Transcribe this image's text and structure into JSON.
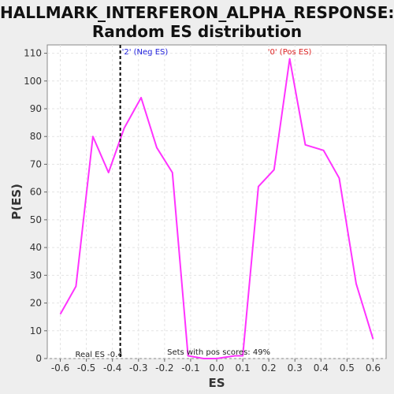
{
  "chart_data": {
    "type": "line",
    "title_line1": "HALLMARK_INTERFERON_ALPHA_RESPONSE:",
    "title_line2": "Random ES distribution",
    "xlabel": "ES",
    "ylabel": "P(ES)",
    "xlim": [
      -0.65,
      0.65
    ],
    "ylim": [
      0,
      113
    ],
    "x_ticks": [
      "-0.6",
      "-0.5",
      "-0.4",
      "-0.3",
      "-0.2",
      "-0.1",
      "0.0",
      "0.1",
      "0.2",
      "0.3",
      "0.4",
      "0.5",
      "0.6"
    ],
    "y_ticks": [
      "0",
      "10",
      "20",
      "30",
      "40",
      "50",
      "60",
      "70",
      "80",
      "90",
      "100",
      "110"
    ],
    "grid": true,
    "series": [
      {
        "color": "#ff33ff",
        "x": [
          -0.6,
          -0.54,
          -0.475,
          -0.415,
          -0.355,
          -0.29,
          -0.23,
          -0.17,
          -0.11,
          -0.05,
          0.0,
          0.07,
          0.1,
          0.16,
          0.22,
          0.28,
          0.34,
          0.41,
          0.47,
          0.535,
          0.6
        ],
        "y": [
          16,
          26,
          80,
          67,
          83,
          94,
          76,
          67,
          1,
          0,
          0,
          1,
          1,
          62,
          68,
          108,
          77,
          75,
          65,
          27,
          7
        ]
      }
    ],
    "real_es": {
      "x": -0.37,
      "label": "Real ES -0.4"
    },
    "annotations": {
      "neg": {
        "text": "'2' (Neg ES)",
        "color": "#2222dd"
      },
      "pos": {
        "text": "'0' (Pos ES)",
        "color": "#dd2222"
      },
      "pos_scores": "Sets with pos scores: 49%"
    }
  }
}
